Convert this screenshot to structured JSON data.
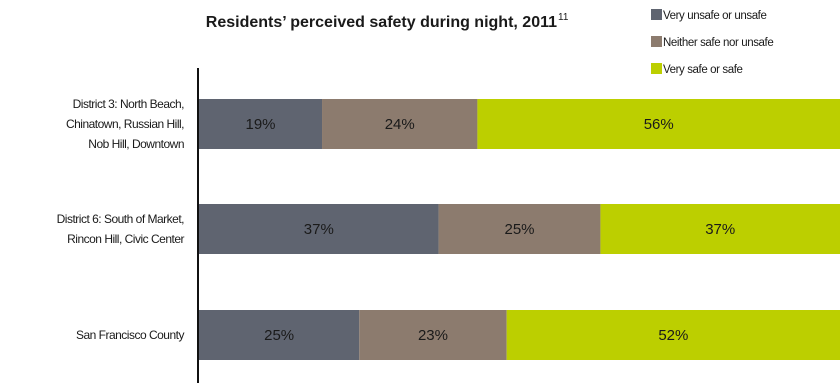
{
  "chart_data": {
    "type": "bar",
    "orientation": "horizontal",
    "stacked": true,
    "title": "Residents’ perceived safety during night, 2011",
    "title_superscript": "11",
    "categories": [
      [
        "District 3: North Beach,",
        "Chinatown, Russian Hill,",
        "Nob Hill, Downtown"
      ],
      [
        "District 6: South of Market,",
        "Rincon Hill, Civic Center"
      ],
      [
        "San Francisco County"
      ]
    ],
    "series": [
      {
        "name": "Very unsafe or unsafe",
        "color": "#5f6470",
        "values": [
          19,
          37,
          25
        ]
      },
      {
        "name": "Neither safe nor unsafe",
        "color": "#8c7b6e",
        "values": [
          24,
          25,
          23
        ]
      },
      {
        "name": "Very safe or safe",
        "color": "#bccf00",
        "values": [
          56,
          37,
          52
        ]
      }
    ],
    "value_suffix": "%",
    "grid": false,
    "legend_position": "top-right"
  }
}
